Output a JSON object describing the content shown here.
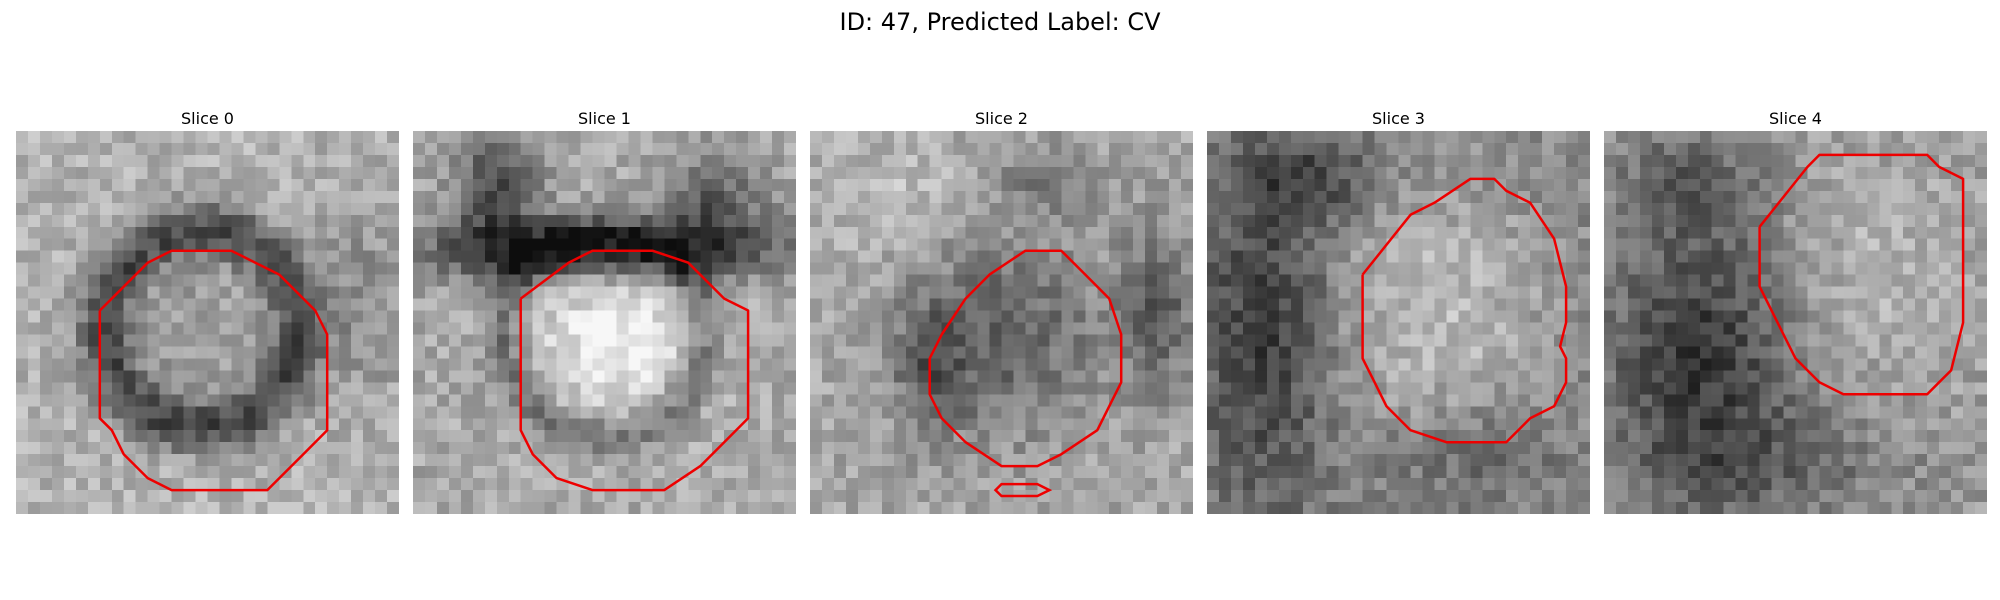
{
  "figure": {
    "title": "ID: 47, Predicted Label: CV"
  },
  "slices": [
    {
      "label": "Slice 0"
    },
    {
      "label": "Slice 1"
    },
    {
      "label": "Slice 2"
    },
    {
      "label": "Slice 3"
    },
    {
      "label": "Slice 4"
    }
  ],
  "colors": {
    "contour": "#ee0000",
    "background": "#ffffff"
  }
}
